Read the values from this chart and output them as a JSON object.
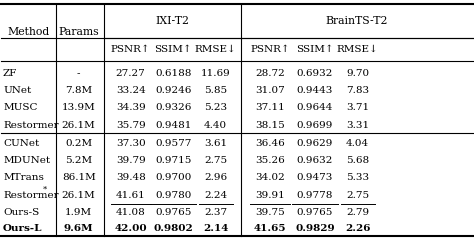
{
  "group_headers": [
    "IXI-T2",
    "BrainTS-T2"
  ],
  "sub_headers": [
    "PSNR↑",
    "SSIM↑",
    "RMSE↓",
    "PSNR↑",
    "SSIM↑",
    "RMSE↓"
  ],
  "rows_group1": [
    [
      "ZF",
      "-",
      "27.27",
      "0.6188",
      "11.69",
      "28.72",
      "0.6932",
      "9.70"
    ],
    [
      "UNet",
      "7.8M",
      "33.24",
      "0.9246",
      "5.85",
      "31.07",
      "0.9443",
      "7.83"
    ],
    [
      "MUSC",
      "13.9M",
      "34.39",
      "0.9326",
      "5.23",
      "37.11",
      "0.9644",
      "3.71"
    ],
    [
      "Restormer",
      "26.1M",
      "35.79",
      "0.9481",
      "4.40",
      "38.15",
      "0.9699",
      "3.31"
    ]
  ],
  "rows_group2": [
    [
      "CUNet",
      "0.2M",
      "37.30",
      "0.9577",
      "3.61",
      "36.46",
      "0.9629",
      "4.04"
    ],
    [
      "MDUNet",
      "5.2M",
      "39.79",
      "0.9715",
      "2.75",
      "35.26",
      "0.9632",
      "5.68"
    ],
    [
      "MTrans",
      "86.1M",
      "39.48",
      "0.9700",
      "2.96",
      "34.02",
      "0.9473",
      "5.33"
    ],
    [
      "Restormer*",
      "26.1M",
      "41.61",
      "0.9780",
      "2.24",
      "39.91",
      "0.9778",
      "2.75"
    ],
    [
      "Ours-S",
      "1.9M",
      "41.08",
      "0.9765",
      "2.37",
      "39.75",
      "0.9765",
      "2.79"
    ],
    [
      "Ours-L",
      "9.6M",
      "42.00",
      "0.9802",
      "2.14",
      "41.65",
      "0.9829",
      "2.26"
    ]
  ],
  "underline_g2_idx": 3,
  "bold_g2_idx": 5,
  "background_color": "#ffffff",
  "font_size": 7.5,
  "font_size_header": 7.8
}
